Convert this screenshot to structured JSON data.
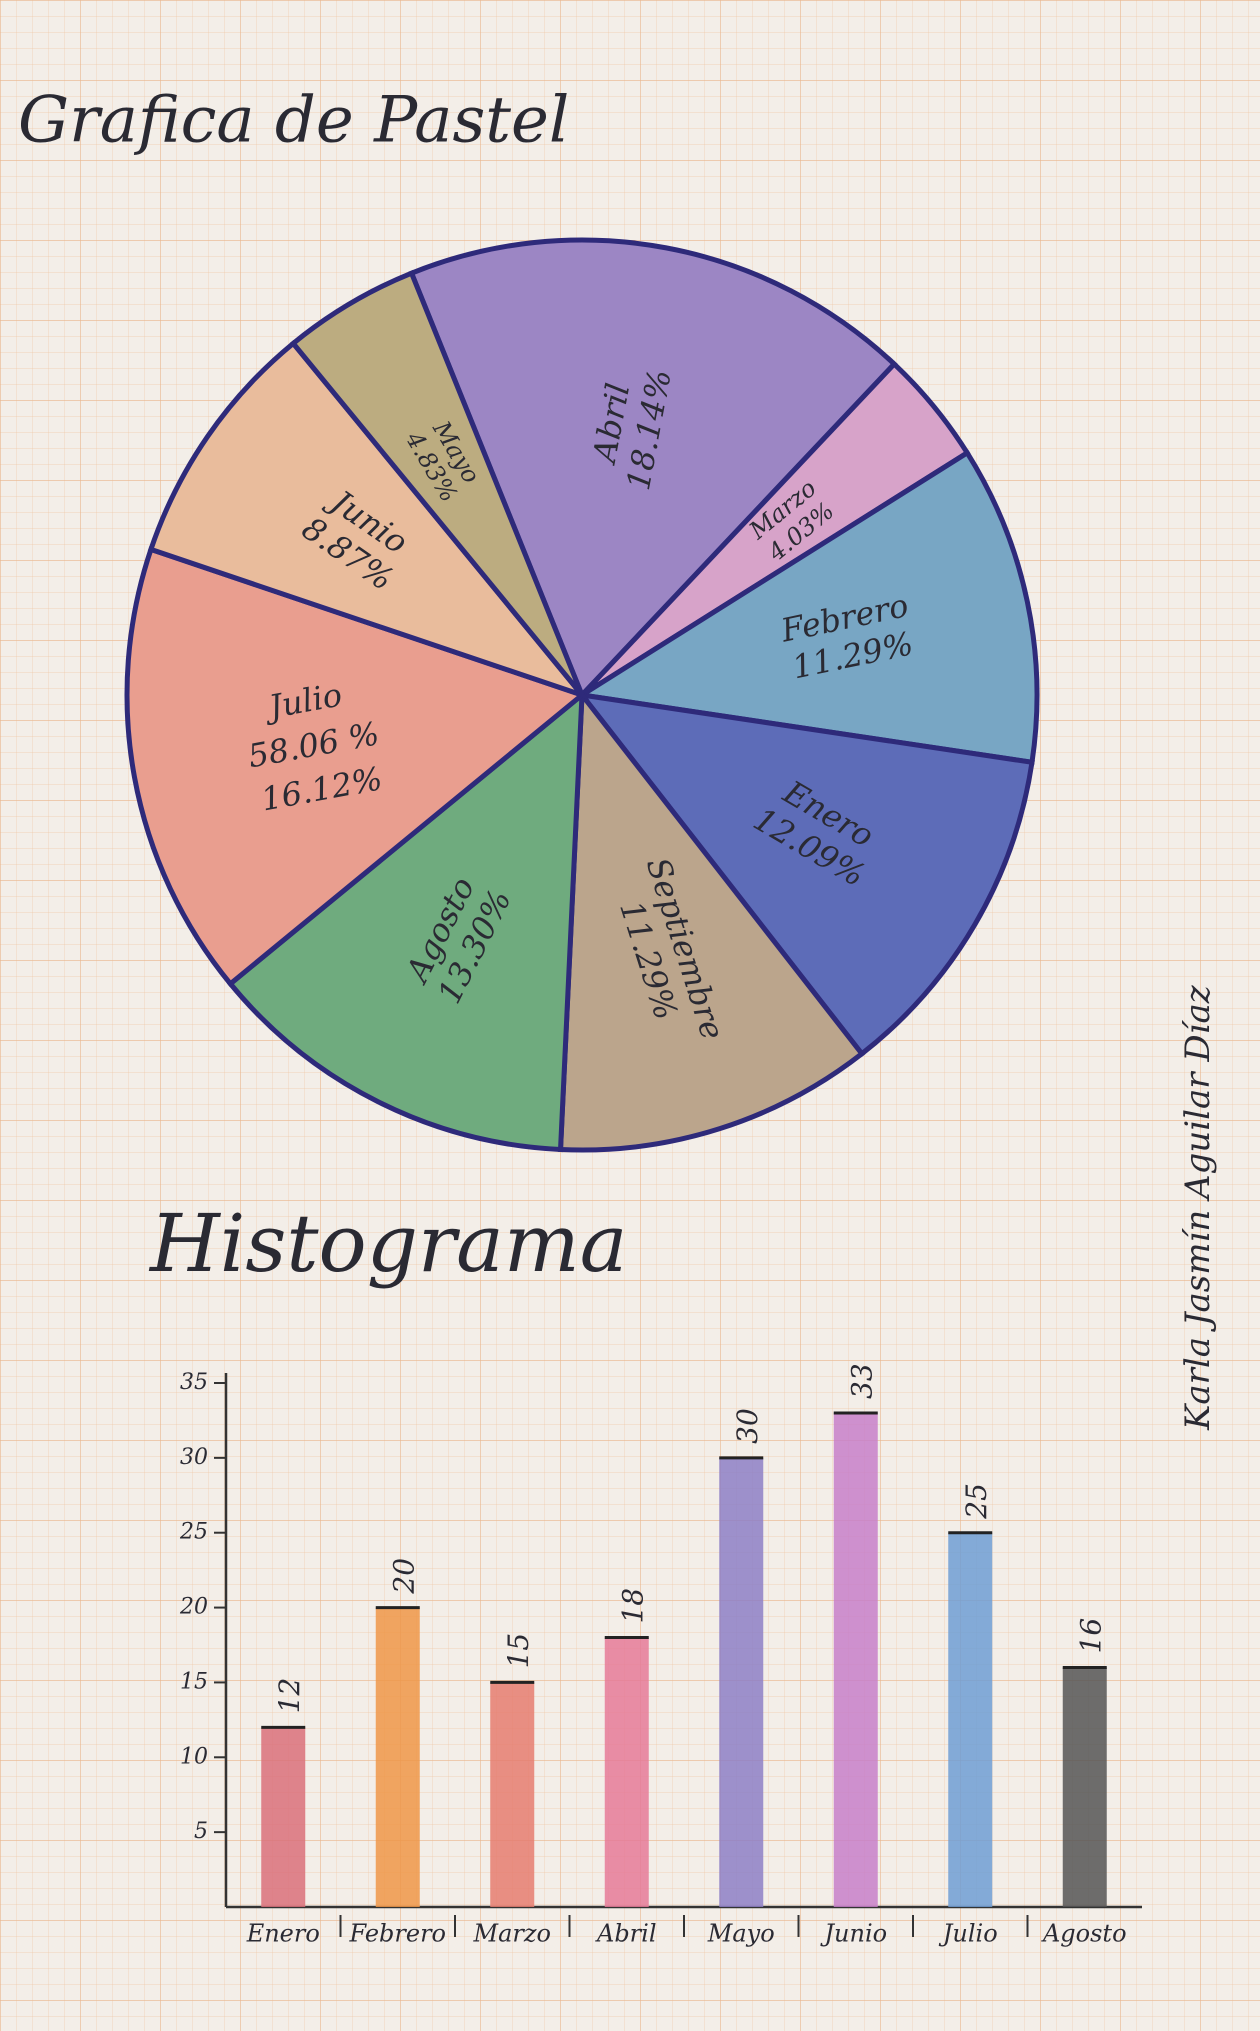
{
  "chart_data": [
    {
      "type": "pie",
      "title": "Grafica de Pastel",
      "categories": [
        "Abril",
        "Marzo",
        "Febrero",
        "Enero",
        "Septiembre",
        "Agosto",
        "Julio",
        "Junio",
        "Mayo"
      ],
      "values": [
        18.14,
        4.03,
        11.29,
        12.09,
        11.29,
        13.3,
        16.12,
        8.87,
        4.83
      ],
      "value_labels": [
        "18.14%",
        "4.03%",
        "11.29%",
        "12.09%",
        "11.29%",
        "13.30%",
        "16.12%",
        "8.87%",
        "4.83%"
      ],
      "colors": [
        "#9c86c4",
        "#d7a3c9",
        "#78a6c4",
        "#5d6cb8",
        "#bba58c",
        "#6fab7e",
        "#e99e8f",
        "#e9bc9c",
        "#bcac80"
      ],
      "annotations": [
        "58.06 %"
      ]
    },
    {
      "type": "bar",
      "title": "Histograma",
      "categories": [
        "Enero",
        "Febrero",
        "Marzo",
        "Abril",
        "Mayo",
        "Junio",
        "Julio",
        "Agosto"
      ],
      "values": [
        12,
        20,
        15,
        18,
        30,
        33,
        25,
        16
      ],
      "colors": [
        "#d9707a",
        "#ef9648",
        "#e57d70",
        "#e57a98",
        "#8d7fc6",
        "#c77fc9",
        "#6e9ed4",
        "#555555"
      ],
      "ylim": [
        0,
        35
      ],
      "yticks": [
        5,
        10,
        15,
        20,
        25,
        30,
        35
      ]
    }
  ],
  "author": "Karla Jasmín Aguilar Díaz"
}
